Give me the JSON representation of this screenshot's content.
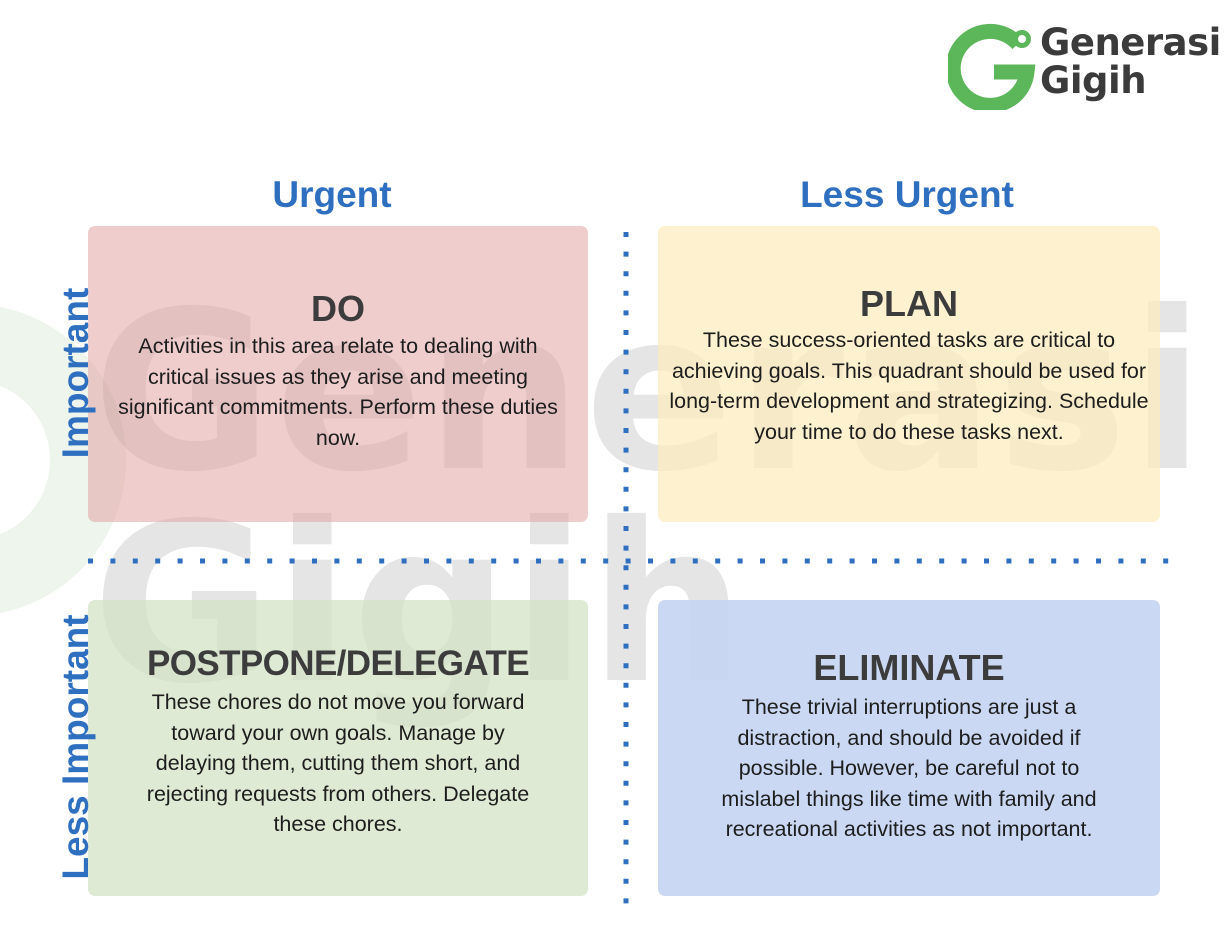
{
  "brand": {
    "name_line1": "Generasi",
    "name_line2": "Gigih",
    "colors": {
      "logo_green": "#5cb65a",
      "logo_text": "#3b3b3b",
      "header_blue": "#2f6fc0",
      "divider_blue": "#2f6fc0"
    },
    "logo_icon": "g-circle-logo-icon"
  },
  "watermark": {
    "line1": "Generasi",
    "line2": "Gigih",
    "icon": "g-circle-logo-icon"
  },
  "axes": {
    "urgent": "Urgent",
    "less_urgent": "Less Urgent",
    "important": "Important",
    "less_important": "Less Important"
  },
  "quadrants": {
    "do": {
      "title": "DO",
      "body": "Activities in this area relate to dealing with critical issues as they arise and meeting significant commitments. Perform these duties now.",
      "color": "#e0a0a0"
    },
    "plan": {
      "title": "PLAN",
      "body": "These success-oriented tasks are critical to achieving goals. This quadrant should be used for long-term development and strategizing.  Schedule your time to do these tasks next.",
      "color": "#fcecbc"
    },
    "postpone": {
      "title": "POSTPONE/DELEGATE",
      "body": "These chores do not move you forward toward your own goals. Manage by delaying them, cutting them short, and rejecting requests from others. Delegate these chores.",
      "color": "#d1e2c4"
    },
    "eliminate": {
      "title": "ELIMINATE",
      "body": "These trivial interruptions are just a distraction, and should be avoided if possible. However, be careful not to mislabel things like time with family and recreational activities as not important.",
      "color": "#c6d5f2"
    }
  }
}
